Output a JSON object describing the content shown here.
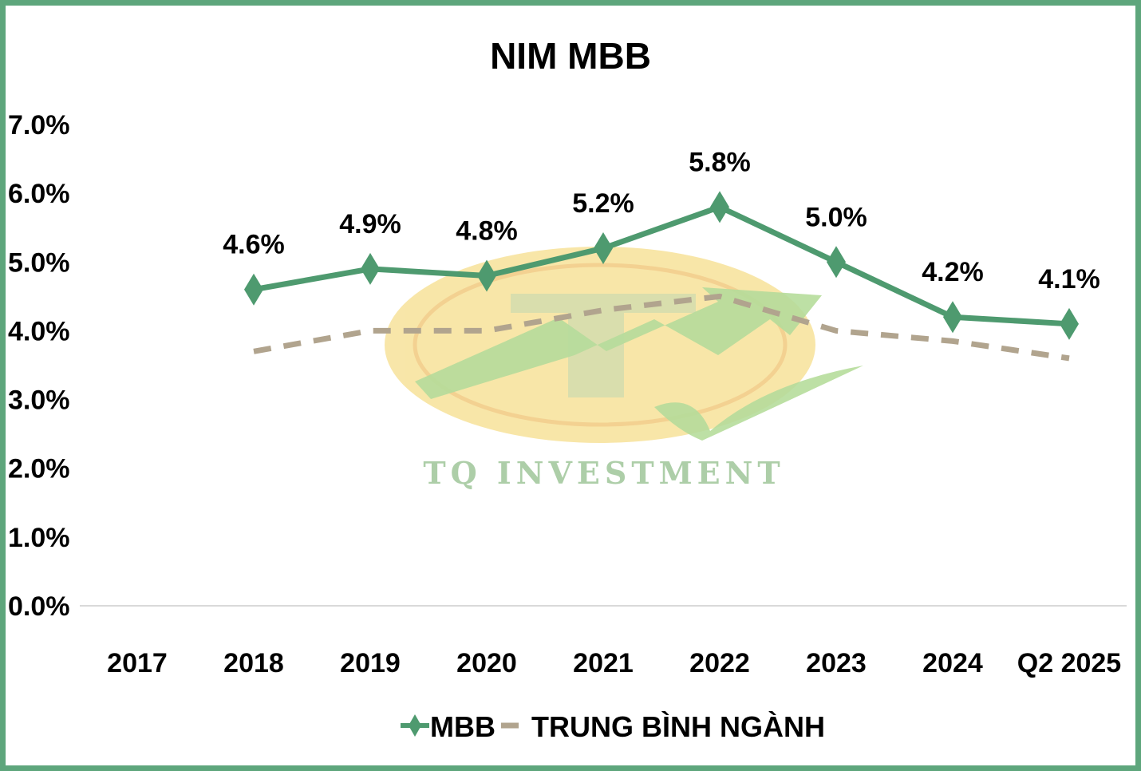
{
  "chart_data": {
    "type": "line",
    "title": "NIM MBB",
    "categories": [
      "2017",
      "2018",
      "2019",
      "2020",
      "2021",
      "2022",
      "2023",
      "2024",
      "Q2 2025"
    ],
    "series": [
      {
        "name": "MBB",
        "values": [
          null,
          4.6,
          4.9,
          4.8,
          5.2,
          5.8,
          5.0,
          4.2,
          4.1
        ],
        "data_labels": [
          "",
          "4.6%",
          "4.9%",
          "4.8%",
          "5.2%",
          "5.8%",
          "5.0%",
          "4.2%",
          "4.1%"
        ],
        "color": "#4e9a6f",
        "style": "solid",
        "marker": "diamond"
      },
      {
        "name": "TRUNG BÌNH NGÀNH",
        "values": [
          null,
          3.7,
          4.0,
          4.0,
          4.3,
          4.5,
          4.0,
          3.85,
          3.6
        ],
        "color": "#b1a48e",
        "style": "dashed"
      }
    ],
    "yticks": [
      "0.0%",
      "1.0%",
      "2.0%",
      "3.0%",
      "4.0%",
      "5.0%",
      "6.0%",
      "7.0%"
    ],
    "ylim": [
      0,
      7
    ],
    "xlabel": "",
    "ylabel": "",
    "grid": false,
    "legend_position": "bottom"
  },
  "watermark": {
    "text": "TQ INVESTMENT",
    "letter": "T",
    "colors": {
      "coin": "#f7e29a",
      "coin_ring": "#f2c97e",
      "arrow": "#a8d68a",
      "text": "#9fc69a"
    }
  },
  "colors": {
    "frame": "#5ea67c",
    "axis": "#d9d9d9"
  }
}
